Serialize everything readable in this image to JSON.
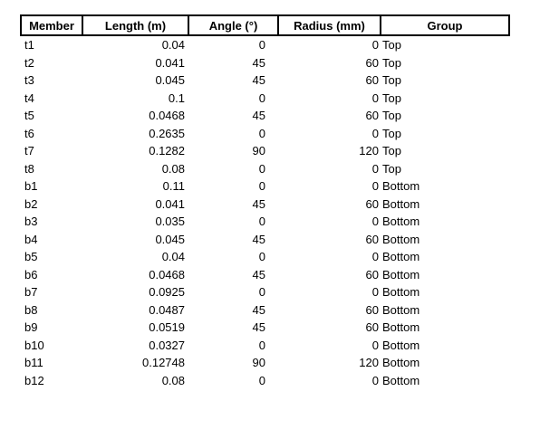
{
  "headers": [
    "Member",
    "Length (m)",
    "Angle (°)",
    "Radius (mm)",
    "Group"
  ],
  "rows": [
    {
      "member": "t1",
      "length": "0.04",
      "angle": "0",
      "radius": "0",
      "group": "Top"
    },
    {
      "member": "t2",
      "length": "0.041",
      "angle": "45",
      "radius": "60",
      "group": "Top"
    },
    {
      "member": "t3",
      "length": "0.045",
      "angle": "45",
      "radius": "60",
      "group": "Top"
    },
    {
      "member": "t4",
      "length": "0.1",
      "angle": "0",
      "radius": "0",
      "group": "Top"
    },
    {
      "member": "t5",
      "length": "0.0468",
      "angle": "45",
      "radius": "60",
      "group": "Top"
    },
    {
      "member": "t6",
      "length": "0.2635",
      "angle": "0",
      "radius": "0",
      "group": "Top"
    },
    {
      "member": "t7",
      "length": "0.1282",
      "angle": "90",
      "radius": "120",
      "group": "Top"
    },
    {
      "member": "t8",
      "length": "0.08",
      "angle": "0",
      "radius": "0",
      "group": "Top"
    },
    {
      "member": "b1",
      "length": "0.11",
      "angle": "0",
      "radius": "0",
      "group": "Bottom"
    },
    {
      "member": "b2",
      "length": "0.041",
      "angle": "45",
      "radius": "60",
      "group": "Bottom"
    },
    {
      "member": "b3",
      "length": "0.035",
      "angle": "0",
      "radius": "0",
      "group": "Bottom"
    },
    {
      "member": "b4",
      "length": "0.045",
      "angle": "45",
      "radius": "60",
      "group": "Bottom"
    },
    {
      "member": "b5",
      "length": "0.04",
      "angle": "0",
      "radius": "0",
      "group": "Bottom"
    },
    {
      "member": "b6",
      "length": "0.0468",
      "angle": "45",
      "radius": "60",
      "group": "Bottom"
    },
    {
      "member": "b7",
      "length": "0.0925",
      "angle": "0",
      "radius": "0",
      "group": "Bottom"
    },
    {
      "member": "b8",
      "length": "0.0487",
      "angle": "45",
      "radius": "60",
      "group": "Bottom"
    },
    {
      "member": "b9",
      "length": "0.0519",
      "angle": "45",
      "radius": "60",
      "group": "Bottom"
    },
    {
      "member": "b10",
      "length": "0.0327",
      "angle": "0",
      "radius": "0",
      "group": "Bottom"
    },
    {
      "member": "b11",
      "length": "0.12748",
      "angle": "90",
      "radius": "120",
      "group": "Bottom"
    },
    {
      "member": "b12",
      "length": "0.08",
      "angle": "0",
      "radius": "0",
      "group": "Bottom"
    }
  ]
}
